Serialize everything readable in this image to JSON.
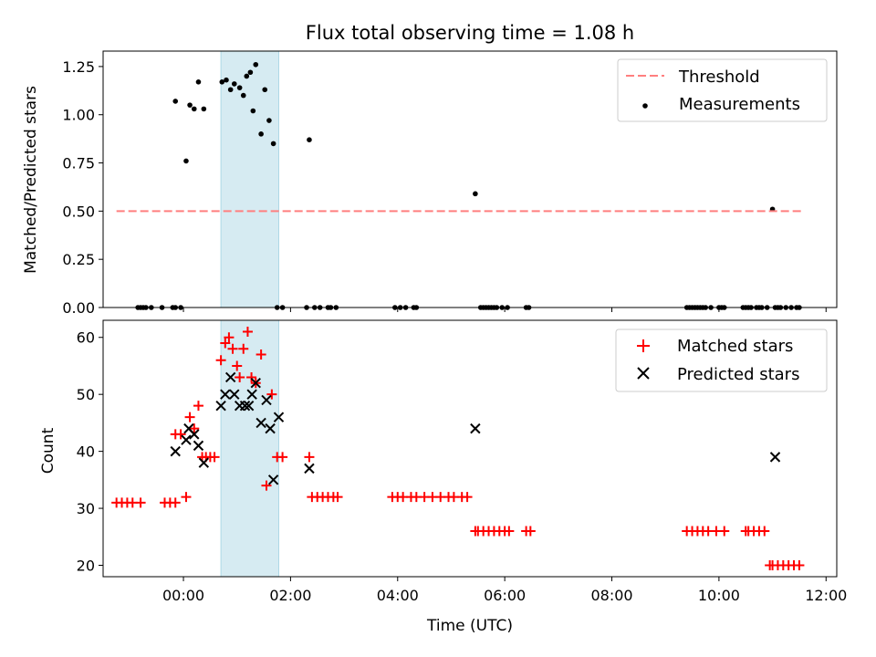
{
  "chart_data": [
    {
      "type": "scatter",
      "title": "Flux total observing time = 1.08 h",
      "ylabel": "Matched/Predicted stars",
      "xlim": [
        -1.5,
        12.2
      ],
      "ylim": [
        0,
        1.33
      ],
      "yticks": [
        0.0,
        0.25,
        0.5,
        0.75,
        1.0,
        1.25
      ],
      "ytick_labels": [
        "0.00",
        "0.25",
        "0.50",
        "0.75",
        "1.00",
        "1.25"
      ],
      "highlight_span": [
        0.7,
        1.78
      ],
      "threshold": {
        "label": "Threshold",
        "y": 0.5,
        "x_start": -1.25,
        "x_end": 11.55,
        "color": "#ff7f7f"
      },
      "legend": {
        "location": "upper right",
        "entries": [
          "Threshold",
          "Measurements"
        ]
      },
      "series": [
        {
          "name": "Measurements",
          "color": "#000000",
          "x": [
            -0.85,
            -0.8,
            -0.75,
            -0.7,
            -0.6,
            -0.4,
            -0.2,
            -0.15,
            -0.05,
            -0.15,
            0.05,
            0.12,
            0.2,
            0.28,
            0.38,
            0.72,
            0.8,
            0.88,
            0.95,
            1.05,
            1.12,
            1.18,
            1.25,
            1.3,
            1.35,
            1.45,
            1.52,
            1.6,
            1.68,
            1.75,
            1.85,
            2.3,
            2.35,
            2.45,
            2.55,
            2.7,
            2.75,
            2.85,
            3.95,
            4.05,
            4.15,
            4.3,
            4.35,
            5.45,
            5.55,
            5.6,
            5.65,
            5.7,
            5.75,
            5.8,
            5.85,
            5.95,
            6.05,
            6.4,
            6.45,
            9.4,
            9.45,
            9.5,
            9.55,
            9.6,
            9.65,
            9.7,
            9.75,
            9.85,
            10.0,
            10.05,
            10.1,
            10.45,
            10.5,
            10.55,
            10.6,
            10.7,
            10.75,
            10.8,
            10.9,
            11.0,
            11.05,
            11.1,
            11.15,
            11.25,
            11.35,
            11.45,
            11.5
          ],
          "y": [
            0,
            0,
            0,
            0,
            0,
            0,
            0,
            0,
            0,
            1.07,
            0.76,
            1.05,
            1.03,
            1.17,
            1.03,
            1.17,
            1.18,
            1.13,
            1.16,
            1.14,
            1.1,
            1.2,
            1.22,
            1.02,
            1.26,
            0.9,
            1.13,
            0.97,
            0.85,
            0,
            0,
            0,
            0.87,
            0,
            0,
            0,
            0,
            0,
            0,
            0,
            0,
            0,
            0,
            0.59,
            0,
            0,
            0,
            0,
            0,
            0,
            0,
            0,
            0,
            0,
            0,
            0,
            0,
            0,
            0,
            0,
            0,
            0,
            0,
            0,
            0,
            0,
            0,
            0,
            0,
            0,
            0,
            0,
            0,
            0,
            0,
            0.51,
            0,
            0,
            0,
            0,
            0,
            0,
            0
          ]
        }
      ]
    },
    {
      "type": "scatter",
      "xlabel": "Time (UTC)",
      "ylabel": "Count",
      "xlim": [
        -1.5,
        12.2
      ],
      "ylim": [
        18,
        63
      ],
      "xticks": [
        0,
        2,
        4,
        6,
        8,
        10,
        12
      ],
      "xtick_labels": [
        "00:00",
        "02:00",
        "04:00",
        "06:00",
        "08:00",
        "10:00",
        "12:00"
      ],
      "yticks": [
        20,
        30,
        40,
        50,
        60
      ],
      "ytick_labels": [
        "20",
        "30",
        "40",
        "50",
        "60"
      ],
      "highlight_span": [
        0.7,
        1.78
      ],
      "legend": {
        "location": "upper right",
        "entries": [
          "Matched stars",
          "Predicted stars"
        ]
      },
      "series": [
        {
          "name": "Matched stars",
          "marker": "plus",
          "color": "#ff0000",
          "x": [
            -1.25,
            -1.15,
            -1.05,
            -0.95,
            -0.8,
            -0.35,
            -0.25,
            -0.15,
            -0.15,
            -0.05,
            0.05,
            0.12,
            0.2,
            0.28,
            0.35,
            0.42,
            0.5,
            0.58,
            0.7,
            0.78,
            0.85,
            0.92,
            1.0,
            1.05,
            1.12,
            1.2,
            1.27,
            1.35,
            1.45,
            1.55,
            1.65,
            1.75,
            1.85,
            2.35,
            2.4,
            2.5,
            2.6,
            2.7,
            2.8,
            2.88,
            3.9,
            4.0,
            4.1,
            4.25,
            4.35,
            4.5,
            4.65,
            4.8,
            4.95,
            5.05,
            5.2,
            5.3,
            5.45,
            5.5,
            5.6,
            5.7,
            5.8,
            5.9,
            6.0,
            6.08,
            6.4,
            6.48,
            9.4,
            9.5,
            9.6,
            9.7,
            9.8,
            9.95,
            10.1,
            10.5,
            10.55,
            10.65,
            10.75,
            10.85,
            10.95,
            11.0,
            11.1,
            11.2,
            11.3,
            11.4,
            11.5
          ],
          "y": [
            31,
            31,
            31,
            31,
            31,
            31,
            31,
            31,
            43,
            43,
            32,
            46,
            44,
            48,
            39,
            39,
            39,
            39,
            56,
            59,
            60,
            58,
            55,
            53,
            58,
            61,
            53,
            52,
            57,
            34,
            50,
            39,
            39,
            39,
            32,
            32,
            32,
            32,
            32,
            32,
            32,
            32,
            32,
            32,
            32,
            32,
            32,
            32,
            32,
            32,
            32,
            32,
            26,
            26,
            26,
            26,
            26,
            26,
            26,
            26,
            26,
            26,
            26,
            26,
            26,
            26,
            26,
            26,
            26,
            26,
            26,
            26,
            26,
            26,
            20,
            20,
            20,
            20,
            20,
            20,
            20
          ]
        },
        {
          "name": "Predicted stars",
          "marker": "x",
          "color": "#000000",
          "x": [
            -0.15,
            0.05,
            0.1,
            0.2,
            0.28,
            0.38,
            0.7,
            0.78,
            0.88,
            0.95,
            1.05,
            1.15,
            1.22,
            1.28,
            1.35,
            1.45,
            1.55,
            1.62,
            1.68,
            1.78,
            2.35,
            5.45,
            11.05
          ],
          "y": [
            40,
            42,
            44,
            43,
            41,
            38,
            48,
            50,
            53,
            50,
            48,
            48,
            48,
            50,
            52,
            45,
            49,
            44,
            35,
            46,
            37,
            44,
            39
          ]
        }
      ]
    }
  ]
}
